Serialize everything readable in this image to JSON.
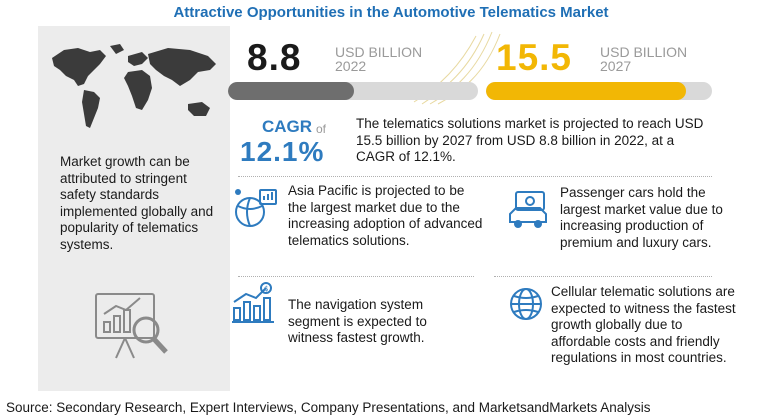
{
  "title": "Attractive Opportunities in the Automotive Telematics  Market",
  "left_text": "Market growth can be attributed to stringent safety standards implemented globally and popularity of telematics systems.",
  "chart_data": {
    "type": "bar",
    "categories": [
      "2022",
      "2027"
    ],
    "values": [
      8.8,
      15.5
    ],
    "unit": "USD BILLION",
    "colors": [
      "#6e6e6e",
      "#f2b705"
    ],
    "track_color": "#d9d9d9",
    "max": 17.5
  },
  "kpis": [
    {
      "value": "8.8",
      "unit": "USD BILLION",
      "year": "2022"
    },
    {
      "value": "15.5",
      "unit": "USD BILLION",
      "year": "2027"
    }
  ],
  "cagr": {
    "label": "CAGR",
    "of": "of",
    "value": "12.1%",
    "text": "The telematics solutions market is projected to reach USD 15.5  billion by 2027 from USD 8.8 billion in 2022, at a CAGR of 12.1%."
  },
  "insights": [
    {
      "icon": "asia-pacific-globe-icon",
      "text": "Asia Pacific is projected to be the largest market due to the increasing adoption of advanced telematics solutions."
    },
    {
      "icon": "passenger-car-money-icon",
      "text": "Passenger cars hold the largest market value due to increasing production of premium and luxury cars."
    },
    {
      "icon": "growth-chart-dollar-icon",
      "text": "The navigation system segment is expected to witness fastest growth."
    },
    {
      "icon": "cellular-globe-icon",
      "text": "Cellular telematic solutions are expected to witness the fastest growth globally due to affordable costs and friendly regulations in most countries."
    }
  ],
  "icons": {
    "map": "world-map-icon",
    "chart": "magnifier-chart-icon"
  },
  "colors": {
    "accent_blue": "#2e7bbf",
    "title_blue": "#1f6fb5",
    "accent_yellow": "#f2b705",
    "bar_gray": "#6e6e6e",
    "panel_gray": "#ececec"
  },
  "source": "Source: Secondary Research, Expert Interviews, Company Presentations, and MarketsandMarkets Analysis"
}
